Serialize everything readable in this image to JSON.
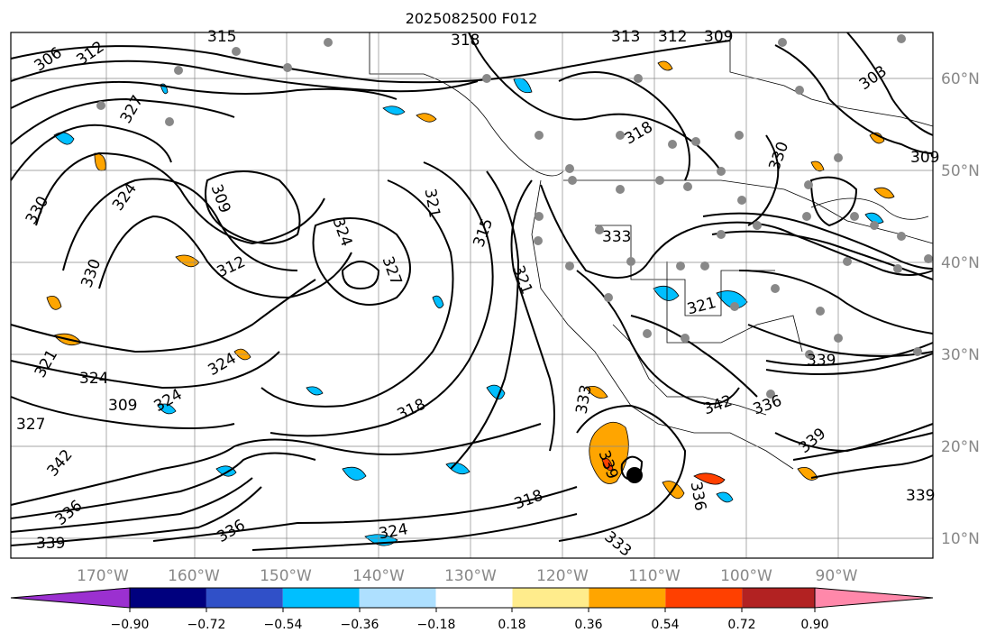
{
  "title": "2025082500 F012",
  "map": {
    "lon_labels": [
      "170°W",
      "160°W",
      "150°W",
      "140°W",
      "130°W",
      "120°W",
      "110°W",
      "100°W",
      "90°W"
    ],
    "lat_labels": [
      "60°N",
      "50°N",
      "40°N",
      "30°N",
      "20°N",
      "10°N"
    ],
    "contour_labels": [
      "306",
      "312",
      "315",
      "318",
      "313",
      "312",
      "309",
      "303",
      "309",
      "318",
      "309",
      "312",
      "324",
      "321",
      "315",
      "321",
      "327",
      "330",
      "324",
      "327",
      "324",
      "318",
      "336",
      "333",
      "321",
      "324",
      "330",
      "309",
      "324",
      "327",
      "321",
      "318",
      "333",
      "342",
      "339",
      "339",
      "342",
      "336",
      "324",
      "333",
      "339",
      "339",
      "336",
      "336",
      "330",
      "339"
    ]
  },
  "colorbar": {
    "ticks": [
      "−0.90",
      "−0.72",
      "−0.54",
      "−0.36",
      "−0.18",
      "0.18",
      "0.36",
      "0.54",
      "0.72",
      "0.90"
    ],
    "colors": [
      "#9b30d0",
      "#00007e",
      "#3050c8",
      "#00bfff",
      "#aee0ff",
      "#ffffff",
      "#ffec8c",
      "#ffa500",
      "#ff4000",
      "#b22222",
      "#ff88aa"
    ]
  }
}
